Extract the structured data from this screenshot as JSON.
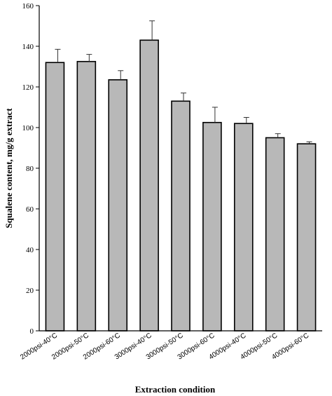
{
  "chart_data": {
    "type": "bar",
    "title": "",
    "xlabel": "Extraction condition",
    "ylabel": "Squalene content, mg/g extract",
    "ylim": [
      0,
      160
    ],
    "yticks": [
      "0",
      "20",
      "40",
      "60",
      "80",
      "100",
      "120",
      "140",
      "160"
    ],
    "categories": [
      "2000psi-40°C",
      "2000psi-50°C",
      "2000psi-60°C",
      "3000psi-40°C",
      "3000psi-50°C",
      "3000psi-60°C",
      "4000psi-40°C",
      "4000psi-50°C",
      "4000psi-60°C"
    ],
    "values": [
      132,
      132.5,
      123.5,
      143,
      113,
      102.5,
      102,
      95,
      92
    ],
    "errors": [
      6.5,
      3.5,
      4.5,
      9.5,
      4,
      7.5,
      3,
      2,
      1
    ],
    "grid": false,
    "bar_color": "#b8b8b8"
  }
}
